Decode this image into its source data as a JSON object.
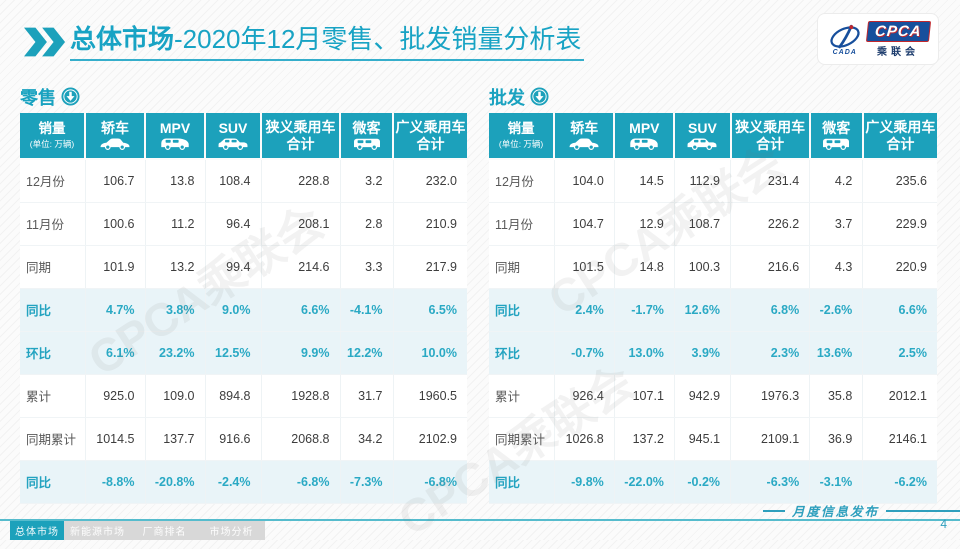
{
  "header": {
    "title_bold": "总体市场",
    "title_rest": "-2020年12月零售、批发销量分析表",
    "logo": {
      "cpca": "CPCA",
      "chinese": "乘联会",
      "cada": "CADA"
    }
  },
  "watermark": "CPCA乘联会",
  "columns": [
    {
      "key": "sales",
      "label": "销量",
      "sub": "(单位: 万辆)",
      "icon": null
    },
    {
      "key": "sedan",
      "label": "轿车",
      "icon": "sedan-icon"
    },
    {
      "key": "mpv",
      "label": "MPV",
      "icon": "mpv-icon"
    },
    {
      "key": "suv",
      "label": "SUV",
      "icon": "suv-icon"
    },
    {
      "key": "narrow-total",
      "label": "狭义乘用车\n合计",
      "icon": null
    },
    {
      "key": "microvan",
      "label": "微客",
      "icon": "microvan-icon"
    },
    {
      "key": "broad-total",
      "label": "广义乘用车\n合计",
      "icon": null
    }
  ],
  "tables": [
    {
      "id": "retail",
      "section_label": "零售",
      "rows": [
        {
          "label": "12月份",
          "highlight": false,
          "values": [
            "106.7",
            "13.8",
            "108.4",
            "228.8",
            "3.2",
            "232.0"
          ]
        },
        {
          "label": "11月份",
          "highlight": false,
          "values": [
            "100.6",
            "11.2",
            "96.4",
            "208.1",
            "2.8",
            "210.9"
          ]
        },
        {
          "label": "同期",
          "highlight": false,
          "values": [
            "101.9",
            "13.2",
            "99.4",
            "214.6",
            "3.3",
            "217.9"
          ]
        },
        {
          "label": "同比",
          "highlight": true,
          "values": [
            "4.7%",
            "3.8%",
            "9.0%",
            "6.6%",
            "-4.1%",
            "6.5%"
          ]
        },
        {
          "label": "环比",
          "highlight": true,
          "values": [
            "6.1%",
            "23.2%",
            "12.5%",
            "9.9%",
            "12.2%",
            "10.0%"
          ]
        },
        {
          "label": "累计",
          "highlight": false,
          "values": [
            "925.0",
            "109.0",
            "894.8",
            "1928.8",
            "31.7",
            "1960.5"
          ]
        },
        {
          "label": "同期累计",
          "highlight": false,
          "values": [
            "1014.5",
            "137.7",
            "916.6",
            "2068.8",
            "34.2",
            "2102.9"
          ]
        },
        {
          "label": "同比",
          "highlight": true,
          "values": [
            "-8.8%",
            "-20.8%",
            "-2.4%",
            "-6.8%",
            "-7.3%",
            "-6.8%"
          ]
        }
      ]
    },
    {
      "id": "wholesale",
      "section_label": "批发",
      "rows": [
        {
          "label": "12月份",
          "highlight": false,
          "values": [
            "104.0",
            "14.5",
            "112.9",
            "231.4",
            "4.2",
            "235.6"
          ]
        },
        {
          "label": "11月份",
          "highlight": false,
          "values": [
            "104.7",
            "12.9",
            "108.7",
            "226.2",
            "3.7",
            "229.9"
          ]
        },
        {
          "label": "同期",
          "highlight": false,
          "values": [
            "101.5",
            "14.8",
            "100.3",
            "216.6",
            "4.3",
            "220.9"
          ]
        },
        {
          "label": "同比",
          "highlight": true,
          "values": [
            "2.4%",
            "-1.7%",
            "12.6%",
            "6.8%",
            "-2.6%",
            "6.6%"
          ]
        },
        {
          "label": "环比",
          "highlight": true,
          "values": [
            "-0.7%",
            "13.0%",
            "3.9%",
            "2.3%",
            "13.6%",
            "2.5%"
          ]
        },
        {
          "label": "累计",
          "highlight": false,
          "values": [
            "926.4",
            "107.1",
            "942.9",
            "1976.3",
            "35.8",
            "2012.1"
          ]
        },
        {
          "label": "同期累计",
          "highlight": false,
          "values": [
            "1026.8",
            "137.2",
            "945.1",
            "2109.1",
            "36.9",
            "2146.1"
          ]
        },
        {
          "label": "同比",
          "highlight": true,
          "values": [
            "-9.8%",
            "-22.0%",
            "-0.2%",
            "-6.3%",
            "-3.1%",
            "-6.2%"
          ]
        }
      ]
    }
  ],
  "footer": {
    "tabs": [
      {
        "label": "总体市场",
        "active": true
      },
      {
        "label": "新能源市场",
        "active": false
      },
      {
        "label": "厂商排名",
        "active": false
      },
      {
        "label": "市场分析",
        "active": false
      }
    ],
    "publication": "月度信息发布",
    "page_number": "4"
  },
  "colors": {
    "teal": "#1CA1BB",
    "highlight_row_bg": "#E9F4F8",
    "percent_text": "#2AA9C4",
    "logo_blue": "#174f9c",
    "logo_red": "#c0272d"
  }
}
